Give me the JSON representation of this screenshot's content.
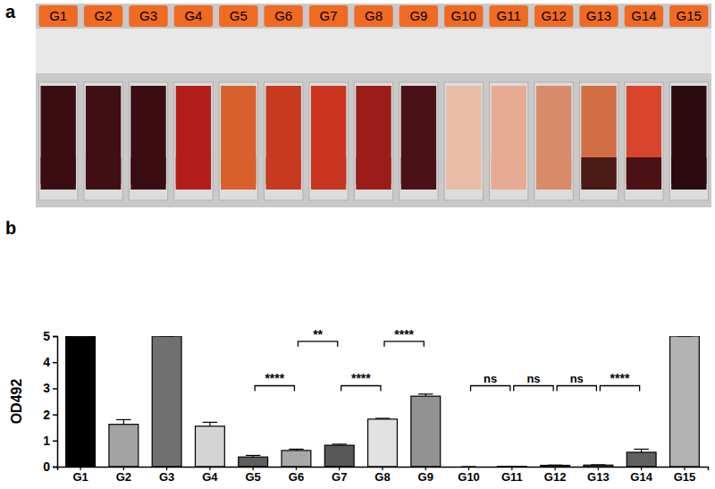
{
  "panel_labels": [
    "a",
    "b"
  ],
  "photo": {
    "tube_labels": [
      "G1",
      "G2",
      "G3",
      "G4",
      "G5",
      "G6",
      "G7",
      "G8",
      "G9",
      "G10",
      "G11",
      "G12",
      "G13",
      "G14",
      "G15"
    ],
    "colors": [
      "#3a0d12",
      "#3f0f14",
      "#3a0d12",
      "#b21d1a",
      "#d8602c",
      "#c73a1f",
      "#c9351f",
      "#9c1c19",
      "#4a1116",
      "#e9bda5",
      "#e7ab93",
      "#d98a68",
      "#d36d44",
      "#d8452c",
      "#2b0b10"
    ],
    "bottom_colors": [
      "#3a0d12",
      "#3f0f14",
      "#3a0d12",
      "#b21d1a",
      "#d8602c",
      "#c73a1f",
      "#c9351f",
      "#9c1c19",
      "#4a1116",
      "#e9bda5",
      "#e7ab93",
      "#d98a68",
      "#4a1a14",
      "#4a1214",
      "#2b0b10"
    ]
  },
  "chart_data": {
    "type": "bar",
    "y_label": "OD492",
    "categories": [
      "G1",
      "G2",
      "G3",
      "G4",
      "G5",
      "G6",
      "G7",
      "G8",
      "G9",
      "G10",
      "G11",
      "G12",
      "G13",
      "G14",
      "G15"
    ],
    "values": [
      5,
      1.62,
      5,
      1.55,
      0.37,
      0.62,
      0.82,
      1.82,
      2.7,
      0,
      0.01,
      0.05,
      0.06,
      0.55,
      5
    ],
    "errors": [
      0,
      0.18,
      0,
      0.15,
      0.06,
      0.05,
      0.04,
      0.03,
      0.08,
      0,
      0,
      0.01,
      0.01,
      0.12,
      0
    ],
    "colors": [
      "#000000",
      "#a3a3a3",
      "#707070",
      "#d4d4d4",
      "#5e5e5e",
      "#a8a8a8",
      "#585858",
      "#e2e2e2",
      "#929292",
      "#bdbdbd",
      "#bdbdbd",
      "#8a8a8a",
      "#8a8a8a",
      "#606060",
      "#b3b3b3"
    ],
    "ylim": [
      0,
      5
    ],
    "yticks": [
      0,
      1,
      2,
      3,
      4,
      5
    ],
    "annotations": [
      {
        "text": "****",
        "x1": "G5",
        "x2": "G6",
        "y": 3.1
      },
      {
        "text": "**",
        "x1": "G6",
        "x2": "G7",
        "y": 4.8
      },
      {
        "text": "****",
        "x1": "G7",
        "x2": "G8",
        "y": 3.1
      },
      {
        "text": "****",
        "x1": "G8",
        "x2": "G9",
        "y": 4.8
      },
      {
        "text": "ns",
        "x1": "G10",
        "x2": "G11",
        "y": 3.1
      },
      {
        "text": "ns",
        "x1": "G11",
        "x2": "G12",
        "y": 3.1
      },
      {
        "text": "ns",
        "x1": "G12",
        "x2": "G13",
        "y": 3.1
      },
      {
        "text": "****",
        "x1": "G13",
        "x2": "G14",
        "y": 3.1
      }
    ]
  }
}
